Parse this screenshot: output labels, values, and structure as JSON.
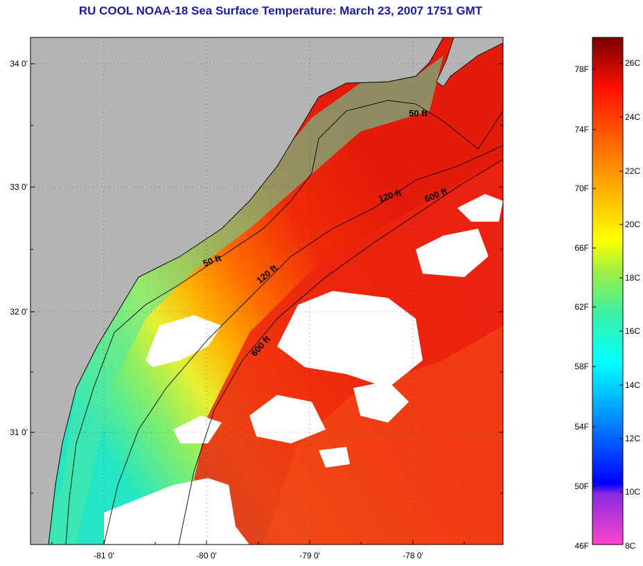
{
  "title": "RU COOL  NOAA-18  Sea Surface Temperature:  March 23, 2007 1751 GMT",
  "map": {
    "lat_ticks": [
      "34 0'",
      "33 0'",
      "32 0'",
      "31 0'"
    ],
    "lon_ticks": [
      "-81 0'",
      "-80 0'",
      "-79 0'",
      "-78 0'"
    ],
    "contours": [
      "50 ft",
      "50 ft",
      "120 ft",
      "120 ft",
      "600 ft",
      "600 ft"
    ],
    "colors": {
      "land": "#b4b4b4",
      "clouds": "#ffffff"
    }
  },
  "colorbar": {
    "fahrenheit": [
      "78F",
      "74F",
      "70F",
      "66F",
      "62F",
      "58F",
      "54F",
      "50F",
      "46F"
    ],
    "celsius": [
      "26C",
      "24C",
      "22C",
      "20C",
      "18C",
      "16C",
      "14C",
      "12C",
      "10C",
      "8C"
    ]
  }
}
